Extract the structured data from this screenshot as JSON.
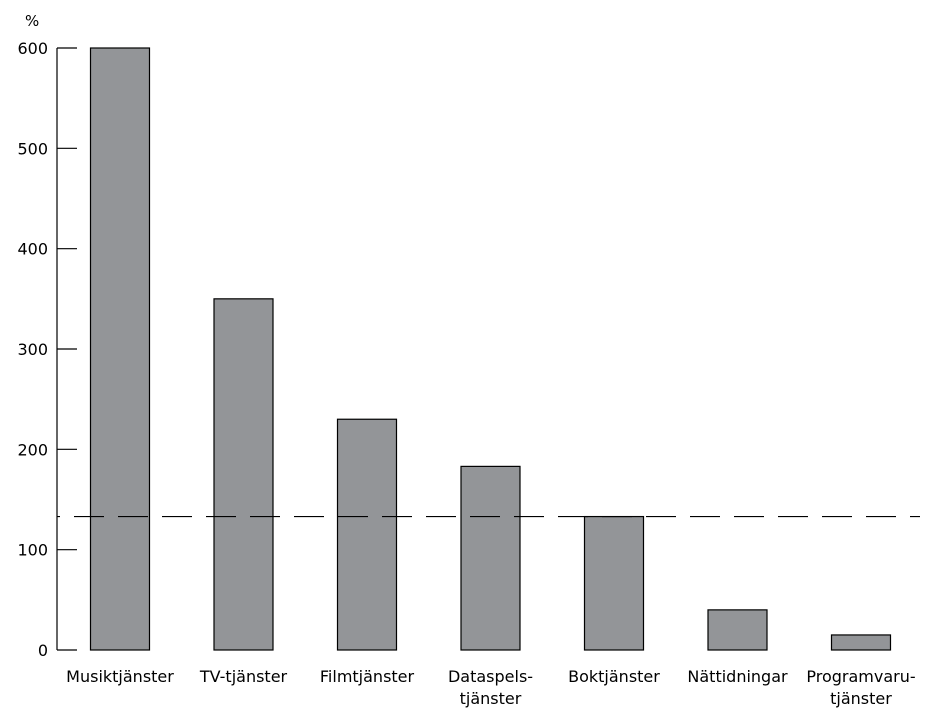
{
  "chart_data": {
    "type": "bar",
    "title": "",
    "xlabel": "",
    "ylabel": "",
    "y_unit": "%",
    "categories": [
      [
        "Musiktjänster"
      ],
      [
        "TV-tjänster"
      ],
      [
        "Filmtjänster"
      ],
      [
        "Dataspels-",
        "tjänster"
      ],
      [
        "Boktjänster"
      ],
      [
        "Nättidningar"
      ],
      [
        "Programvaru-",
        "tjänster"
      ]
    ],
    "values": [
      600,
      350,
      230,
      183,
      133,
      40,
      15
    ],
    "reference_line": {
      "value": 133,
      "style": "dashed"
    },
    "ylim": [
      0,
      600
    ],
    "yticks": [
      0,
      100,
      200,
      300,
      400,
      500,
      600
    ],
    "grid": false,
    "legend": "none",
    "colors": {
      "bar_fill": "#939598",
      "bar_stroke": "#000000",
      "axis": "#000000"
    }
  }
}
